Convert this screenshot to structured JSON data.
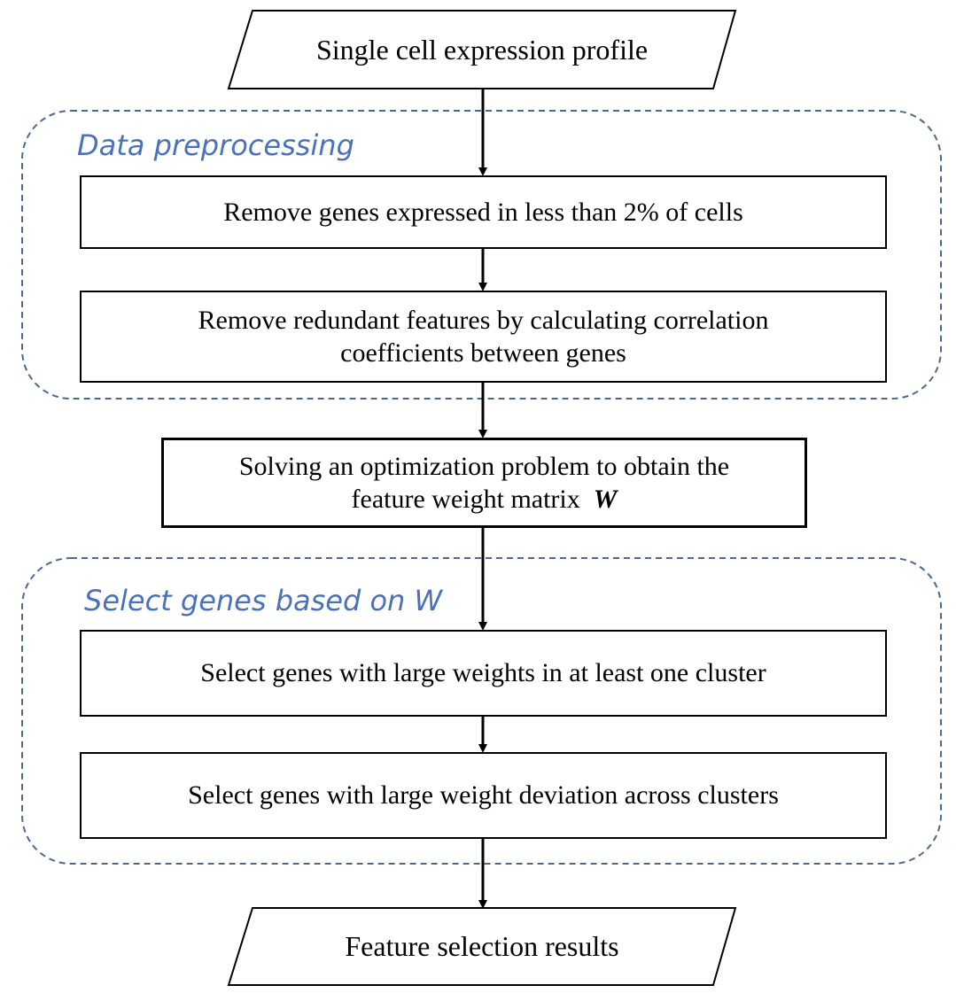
{
  "input": "Single cell expression profile",
  "output": "Feature selection results",
  "groups": {
    "preprocessing": {
      "title": "Data preprocessing",
      "steps": [
        "Remove genes expressed in less than 2% of cells",
        "Remove redundant features by calculating correlation coefficients between genes"
      ]
    },
    "optimization": {
      "text": "Solving an optimization problem to obtain the feature weight matrix",
      "symbol": "W"
    },
    "selection": {
      "title": "Select genes based on W",
      "steps": [
        "Select genes with large weights in at least one cluster",
        "Select genes with large weight deviation across clusters"
      ]
    }
  },
  "colors": {
    "group_border": "#4a6a94",
    "group_title": "#4a72b8",
    "stroke": "#000000"
  }
}
